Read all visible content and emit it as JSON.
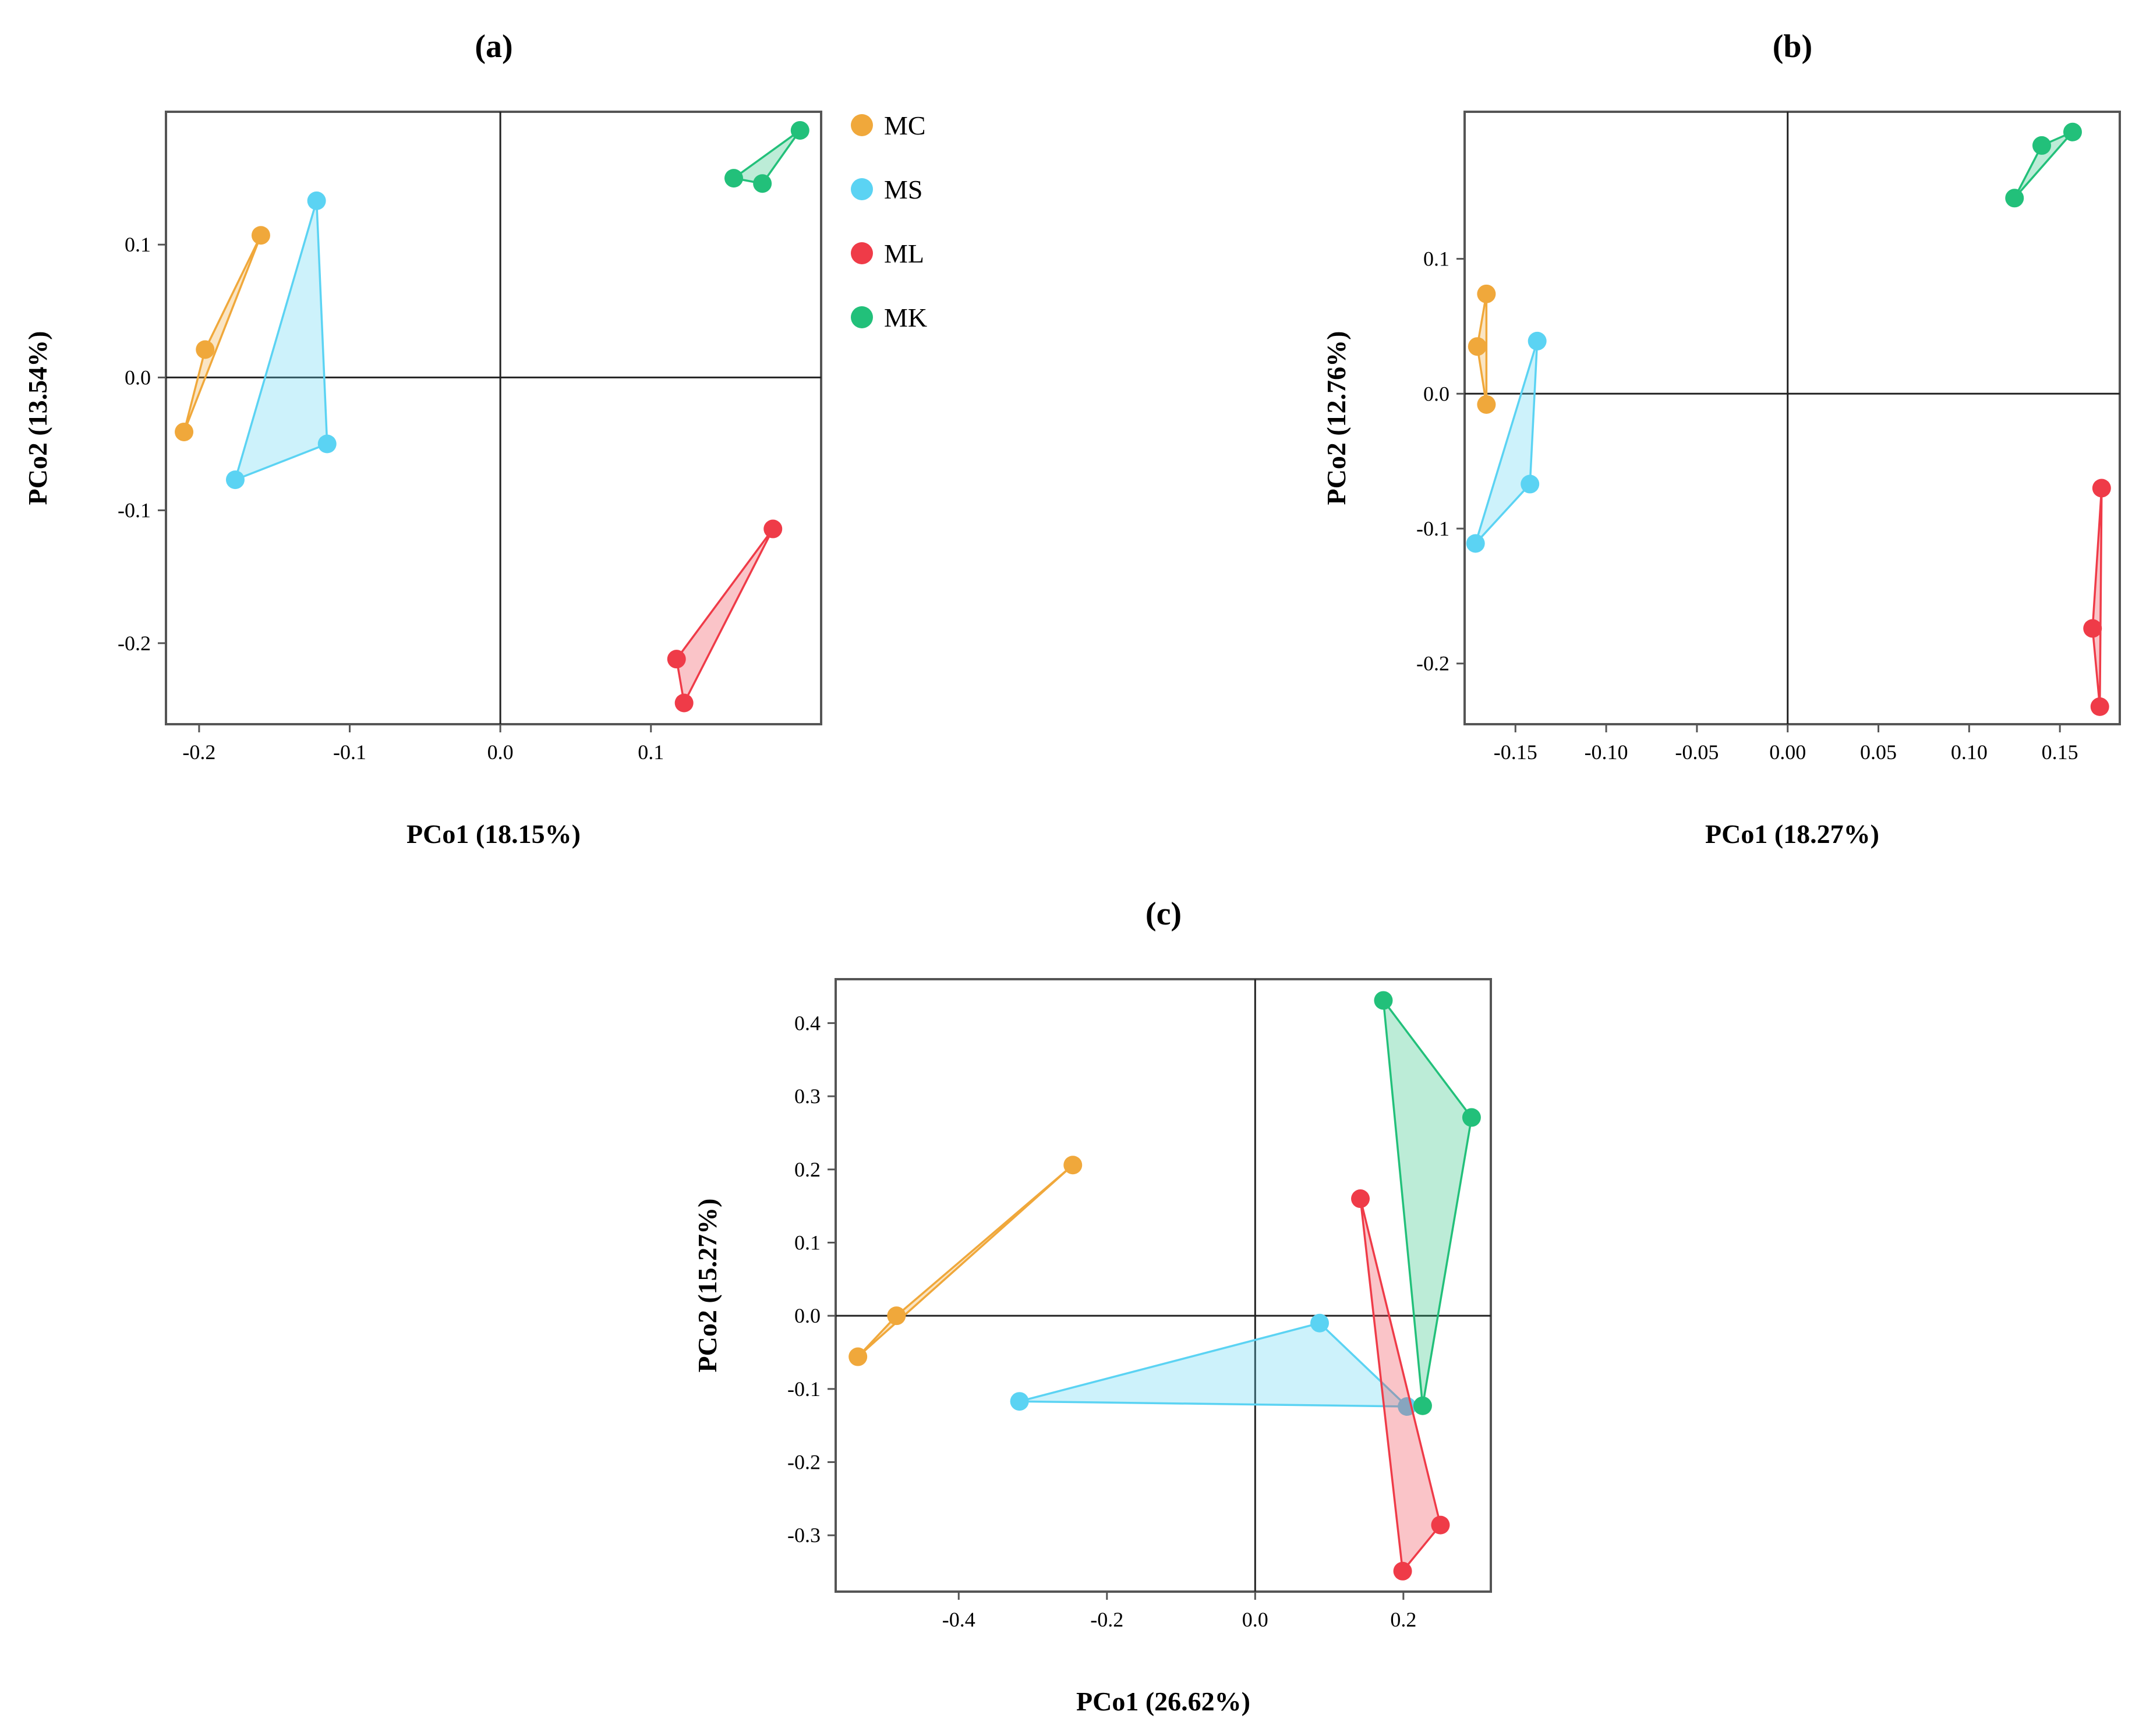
{
  "colors": {
    "MC": "#f0a83b",
    "MS": "#5bd3f3",
    "ML": "#ef3b48",
    "MK": "#22c07a"
  },
  "legend": [
    "MC",
    "MS",
    "ML",
    "MK"
  ],
  "chart_data": [
    {
      "type": "scatter",
      "title": "(a)",
      "xlabel": "PCo1 (18.15%)",
      "ylabel": "PCo2 (13.54%)",
      "xlim": [
        -0.222,
        0.213
      ],
      "ylim": [
        -0.261,
        0.2
      ],
      "xticks": [
        -0.2,
        -0.1,
        0.0,
        0.1
      ],
      "xtick_labels": [
        "-0.2",
        "-0.1",
        "0.0",
        "0.1"
      ],
      "yticks": [
        -0.2,
        -0.1,
        0.0,
        0.1
      ],
      "ytick_labels": [
        "-0.2",
        "-0.1",
        "0.0",
        "0.1"
      ],
      "legend_position": "right",
      "series": [
        {
          "name": "MC",
          "points": [
            [
              -0.159,
              0.107
            ],
            [
              -0.196,
              0.021
            ],
            [
              -0.21,
              -0.041
            ]
          ]
        },
        {
          "name": "MS",
          "points": [
            [
              -0.122,
              0.133
            ],
            [
              -0.115,
              -0.05
            ],
            [
              -0.176,
              -0.077
            ]
          ]
        },
        {
          "name": "ML",
          "points": [
            [
              0.181,
              -0.114
            ],
            [
              0.117,
              -0.212
            ],
            [
              0.122,
              -0.245
            ]
          ]
        },
        {
          "name": "MK",
          "points": [
            [
              0.199,
              0.186
            ],
            [
              0.155,
              0.15
            ],
            [
              0.174,
              0.146
            ]
          ]
        }
      ]
    },
    {
      "type": "scatter",
      "title": "(b)",
      "xlabel": "PCo1 (18.27%)",
      "ylabel": "PCo2 (12.76%)",
      "xlim": [
        -0.178,
        0.183
      ],
      "ylim": [
        -0.245,
        0.209
      ],
      "xticks": [
        -0.15,
        -0.1,
        -0.05,
        0.0,
        0.05,
        0.1,
        0.15
      ],
      "xtick_labels": [
        "-0.15",
        "-0.10",
        "-0.05",
        "0.00",
        "0.05",
        "0.10",
        "0.15"
      ],
      "yticks": [
        -0.2,
        -0.1,
        0.0,
        0.1
      ],
      "ytick_labels": [
        "-0.2",
        "-0.1",
        "0.0",
        "0.1"
      ],
      "series": [
        {
          "name": "MC",
          "points": [
            [
              -0.166,
              0.074
            ],
            [
              -0.171,
              0.035
            ],
            [
              -0.166,
              -0.008
            ]
          ]
        },
        {
          "name": "MS",
          "points": [
            [
              -0.138,
              0.039
            ],
            [
              -0.142,
              -0.067
            ],
            [
              -0.172,
              -0.111
            ]
          ]
        },
        {
          "name": "ML",
          "points": [
            [
              0.173,
              -0.07
            ],
            [
              0.168,
              -0.174
            ],
            [
              0.172,
              -0.232
            ]
          ]
        },
        {
          "name": "MK",
          "points": [
            [
              0.157,
              0.194
            ],
            [
              0.14,
              0.184
            ],
            [
              0.125,
              0.145
            ]
          ]
        }
      ]
    },
    {
      "type": "scatter",
      "title": "(c)",
      "xlabel": "PCo1 (26.62%)",
      "ylabel": "PCo2 (15.27%)",
      "xlim": [
        -0.566,
        0.318
      ],
      "ylim": [
        -0.377,
        0.46
      ],
      "xticks": [
        -0.4,
        -0.2,
        0.0,
        0.2
      ],
      "xtick_labels": [
        "-0.4",
        "-0.2",
        "0.0",
        "0.2"
      ],
      "yticks": [
        -0.3,
        -0.2,
        -0.1,
        0.0,
        0.1,
        0.2,
        0.3,
        0.4
      ],
      "ytick_labels": [
        "-0.3",
        "-0.2",
        "-0.1",
        "0.0",
        "0.1",
        "0.2",
        "0.3",
        "0.4"
      ],
      "series": [
        {
          "name": "MC",
          "points": [
            [
              -0.246,
              0.206
            ],
            [
              -0.484,
              0.0
            ],
            [
              -0.536,
              -0.056
            ]
          ]
        },
        {
          "name": "MS",
          "points": [
            [
              0.087,
              -0.01
            ],
            [
              -0.318,
              -0.117
            ],
            [
              0.205,
              -0.124
            ]
          ]
        },
        {
          "name": "ML",
          "points": [
            [
              0.142,
              0.16
            ],
            [
              0.25,
              -0.286
            ],
            [
              0.199,
              -0.349
            ]
          ]
        },
        {
          "name": "MK",
          "points": [
            [
              0.173,
              0.431
            ],
            [
              0.292,
              0.271
            ],
            [
              0.226,
              -0.123
            ]
          ]
        }
      ]
    }
  ]
}
